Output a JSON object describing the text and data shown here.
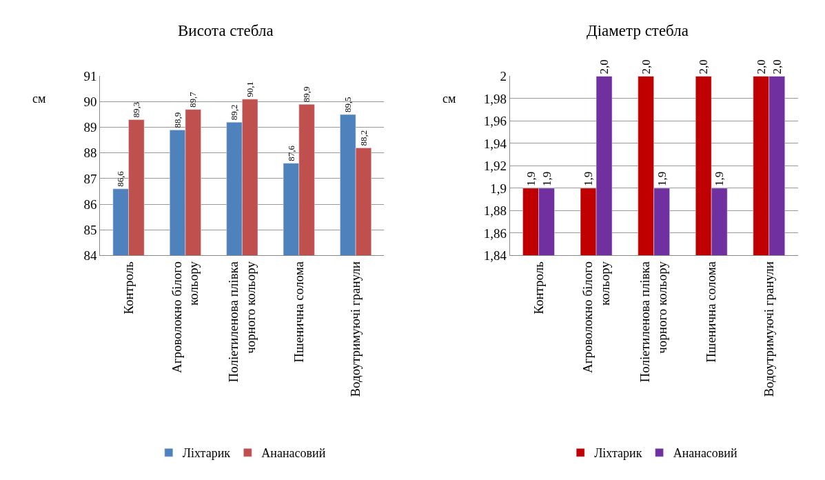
{
  "chart_data": [
    {
      "type": "bar",
      "title": "Висота стебла",
      "ylabel": "см",
      "categories": [
        "Контроль",
        "Агроволокно білого кольору",
        "Поліетиленова плівка чорного кольору",
        "Пшенична солома",
        "Водоутримуючі гранули"
      ],
      "series": [
        {
          "name": "Ліхтарик",
          "color": "#4f81bd",
          "values": [
            86.6,
            88.9,
            89.2,
            87.6,
            89.5
          ],
          "value_labels": [
            "86,6",
            "88,9",
            "89,2",
            "87,6",
            "89,5"
          ]
        },
        {
          "name": "Ананасовий",
          "color": "#c0504d",
          "values": [
            89.3,
            89.7,
            90.1,
            89.9,
            88.2
          ],
          "value_labels": [
            "89,3",
            "89,7",
            "90,1",
            "89,9",
            "88,2"
          ]
        }
      ],
      "ylim": [
        84,
        91
      ],
      "yticks": [
        84,
        85,
        86,
        87,
        88,
        89,
        90,
        91
      ],
      "grid": "y",
      "legend": "bottom"
    },
    {
      "type": "bar",
      "title": "Діаметр стебла",
      "ylabel": "см",
      "categories": [
        "Контроль",
        "Агроволокно білого кольору",
        "Поліетиленова плівка чорного кольору",
        "Пшенична солома",
        "Водоутримуючі гранули"
      ],
      "series": [
        {
          "name": "Ліхтарик",
          "color": "#c00000",
          "values": [
            1.9,
            1.9,
            2.0,
            2.0,
            2.0
          ],
          "value_labels": [
            "1,9",
            "1,9",
            "2,0",
            "2,0",
            "2,0"
          ]
        },
        {
          "name": "Ананасовий",
          "color": "#7030a0",
          "values": [
            1.9,
            2.0,
            1.9,
            1.9,
            2.0
          ],
          "value_labels": [
            "1,9",
            "2,0",
            "1,9",
            "1,9",
            "2,0"
          ]
        }
      ],
      "ylim": [
        1.84,
        2.0
      ],
      "yticks": [
        {
          "value": 1.84,
          "label": "1,84"
        },
        {
          "value": 1.86,
          "label": "1,86"
        },
        {
          "value": 1.88,
          "label": "1,88"
        },
        {
          "value": 1.9,
          "label": "1,9"
        },
        {
          "value": 1.92,
          "label": "1,92"
        },
        {
          "value": 1.94,
          "label": "1,94"
        },
        {
          "value": 1.96,
          "label": "1,96"
        },
        {
          "value": 1.98,
          "label": "1,98"
        },
        {
          "value": 2.0,
          "label": "2"
        }
      ],
      "grid": "y",
      "legend": "bottom"
    }
  ]
}
